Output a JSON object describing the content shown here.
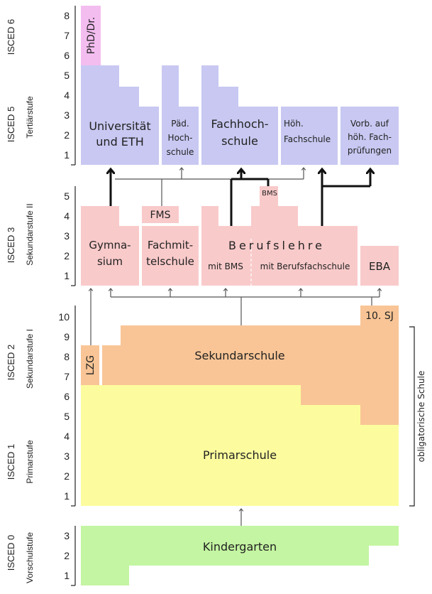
{
  "isced": {
    "isced6": "ISCED 6",
    "isced5": "ISCED 5",
    "isced3": "ISCED 3",
    "isced2": "ISCED 2",
    "isced1": "ISCED 1",
    "isced0": "ISCED 0"
  },
  "stages": {
    "tertiaer": "Tertiärstufe",
    "sek2": "Sekundarstufe II",
    "sek1": "Sekundarstufe I",
    "primar": "Primarstufe",
    "vorschul": "Vorschulstufe"
  },
  "ticks": {
    "tertiary": [
      "1",
      "2",
      "3",
      "4",
      "5",
      "6",
      "7",
      "8"
    ],
    "secondary2": [
      "1",
      "2",
      "3",
      "4",
      "5"
    ],
    "compulsory": [
      "1",
      "2",
      "3",
      "4",
      "5",
      "6",
      "7",
      "8",
      "9",
      "10"
    ],
    "preschool": [
      "1",
      "2",
      "3"
    ]
  },
  "schools": {
    "phd": "PhD/Dr.",
    "uni_line1": "Universität",
    "uni_line2": "und ETH",
    "paed_line1": "Päd.",
    "paed_line2": "Hoch-",
    "paed_line3": "schule",
    "fh_line1": "Fachhoch-",
    "fh_line2": "schule",
    "hfs_line1": "Höh.",
    "hfs_line2": "Fachschule",
    "vorb_line1": "Vorb. auf",
    "vorb_line2": "höh. Fach-",
    "vorb_line3": "prüfungen",
    "fms": "FMS",
    "bms": "BMS",
    "gym_line1": "Gymna-",
    "gym_line2": "sium",
    "fachmit_line1": "Fachmit-",
    "fachmit_line2": "telschule",
    "berufslehre": "Berufslehre",
    "mit_bms": "mit BMS",
    "mit_bfs": "mit Berufsfachschule",
    "eba": "EBA",
    "zehn_sj": "10. SJ",
    "lzg": "LZG",
    "sekundarschule": "Sekundarschule",
    "primarschule": "Primarschule",
    "kindergarten": "Kindergarten",
    "obligatorisch": "obligatorische Schule"
  },
  "colors": {
    "tertiary": "#c8c8f2",
    "phd": "#f4bdf0",
    "secondary2": "#f9caca",
    "secondary1": "#f9c596",
    "primary": "#fcfc9e",
    "preschool": "#c4f5a2",
    "axis": "#222222",
    "arrow_thin": "#555555",
    "arrow_thick": "#111111"
  }
}
